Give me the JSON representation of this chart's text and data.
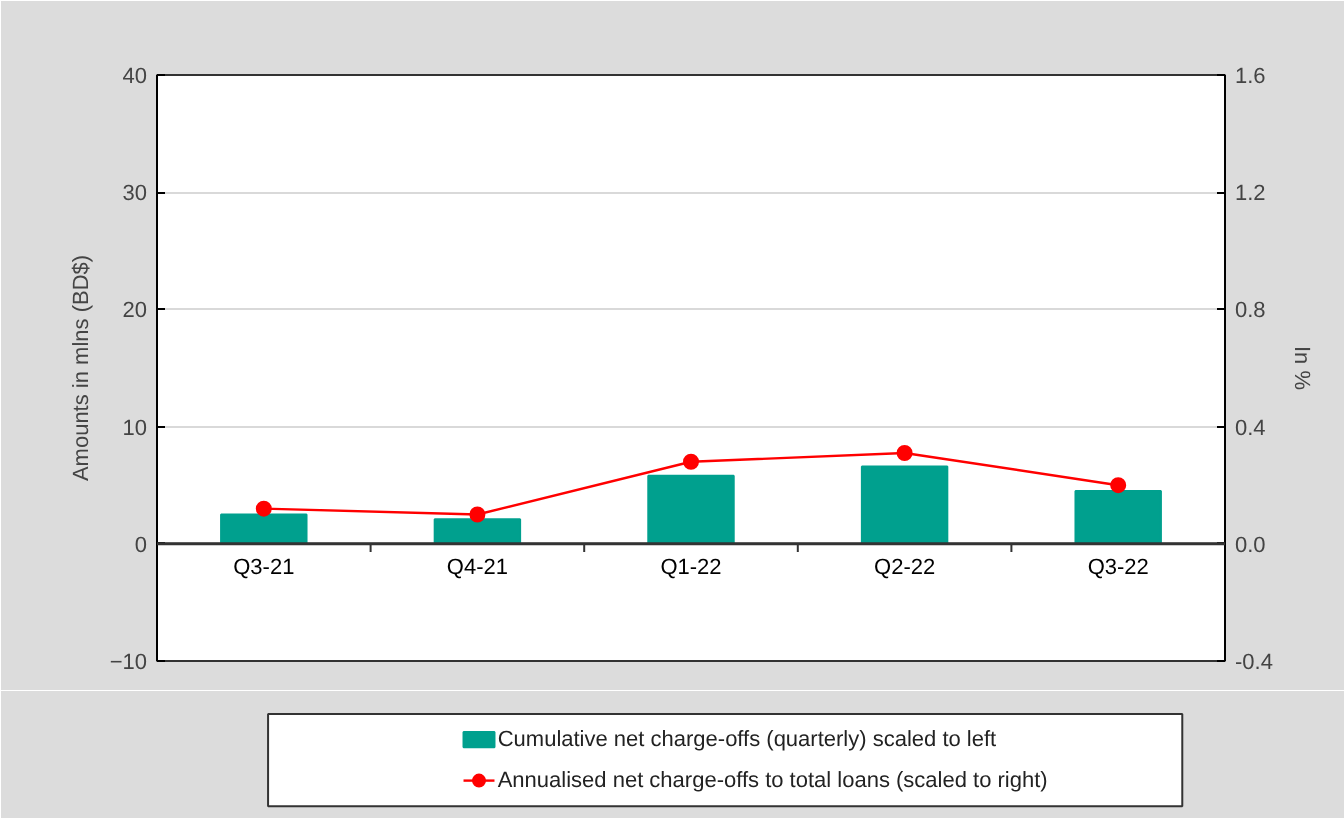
{
  "chart_data": {
    "type": "bar",
    "ylabel": "Amounts in mlns (BD$)",
    "y2label": "In %",
    "categories": [
      "Q3-21",
      "Q4-21",
      "Q1-22",
      "Q2-22",
      "Q3-22"
    ],
    "series": [
      {
        "name": "Cumulative net charge-offs (quarterly) scaled to left",
        "color": "#00a08e",
        "values": [
          2.5,
          2.1,
          5.8,
          6.6,
          4.5
        ]
      },
      {
        "name": "Annualised net charge-offs to total loans (scaled to right)",
        "type": "line",
        "axis": "y2",
        "color": "#ff0000",
        "marker": "circle",
        "values": [
          0.12,
          0.1,
          0.28,
          0.31,
          0.2
        ]
      }
    ],
    "ylim": [
      -10,
      40
    ],
    "yticks": [
      -10,
      0,
      10,
      20,
      30,
      40
    ],
    "y2lim": [
      -0.4,
      1.6
    ],
    "y2ticks": [
      {
        "value": -0.4,
        "label": "-0.4"
      },
      {
        "value": 0,
        "label": "0.0"
      },
      {
        "value": 0.4,
        "label": "0.4"
      },
      {
        "value": 0.8,
        "label": "0.8"
      },
      {
        "value": 1.2,
        "label": "1.2"
      },
      {
        "value": 1.6,
        "label": "1.6"
      }
    ],
    "grid": "y",
    "legend": "bottom"
  }
}
